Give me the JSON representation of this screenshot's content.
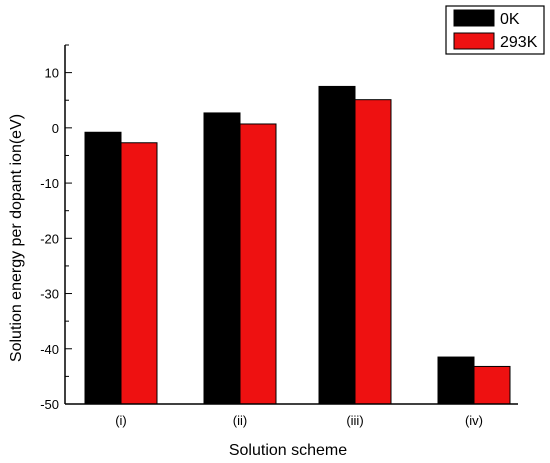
{
  "chart_data": {
    "type": "bar",
    "xlabel": "Solution scheme",
    "ylabel": "Solution energy per dopant ion(eV)",
    "ylim": [
      -50,
      15
    ],
    "yticks": [
      10,
      0,
      -10,
      -20,
      -30,
      -40,
      -50
    ],
    "categories": [
      "(i)",
      "(ii)",
      "(iii)",
      "(iv)"
    ],
    "series": [
      {
        "name": "0K",
        "color": "#000000",
        "values": [
          -0.8,
          2.7,
          7.5,
          -41.5
        ]
      },
      {
        "name": "293K",
        "color": "#ee1111",
        "values": [
          -2.7,
          0.7,
          5.1,
          -43.2
        ]
      }
    ],
    "legend": "top-right",
    "grid": false
  }
}
